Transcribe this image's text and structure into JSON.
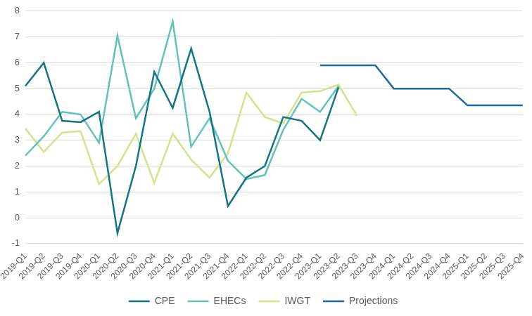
{
  "chart_data": {
    "type": "line",
    "categories": [
      "2019-Q1",
      "2019-Q2",
      "2019-Q3",
      "2019-Q4",
      "2020-Q1",
      "2020-Q2",
      "2020-Q3",
      "2020-Q4",
      "2021-Q1",
      "2021-Q2",
      "2021-Q3",
      "2021-Q4",
      "2022-Q1",
      "2022-Q2",
      "2022-Q3",
      "2022-Q4",
      "2023-Q1",
      "2023-Q2",
      "2023-Q3",
      "2023-Q4",
      "2024-Q1",
      "2024-Q2",
      "2024-Q3",
      "2024-Q4",
      "2025-Q1",
      "2025-Q2",
      "2025-Q3",
      "2025-Q4"
    ],
    "series": [
      {
        "name": "CPE",
        "color": "#137486",
        "values": [
          5.1,
          6.0,
          3.75,
          3.7,
          4.1,
          -0.6,
          2.0,
          5.65,
          4.25,
          6.55,
          4.1,
          0.45,
          1.55,
          2.0,
          3.9,
          3.75,
          3.0,
          5.05,
          null,
          null,
          null,
          null,
          null,
          null,
          null,
          null,
          null,
          null
        ]
      },
      {
        "name": "EHECs",
        "color": "#63c2ba",
        "values": [
          2.4,
          3.15,
          4.1,
          4.0,
          2.9,
          7.05,
          3.85,
          5.0,
          7.6,
          2.75,
          3.85,
          2.2,
          1.5,
          1.65,
          3.4,
          4.6,
          4.1,
          5.1,
          null,
          null,
          null,
          null,
          null,
          null,
          null,
          null,
          null,
          null
        ]
      },
      {
        "name": "IWGT",
        "color": "#d3e48a",
        "values": [
          3.45,
          2.55,
          3.3,
          3.35,
          1.3,
          2.0,
          3.25,
          1.35,
          3.25,
          2.25,
          1.55,
          2.5,
          4.85,
          3.9,
          3.65,
          4.85,
          4.9,
          5.15,
          3.95,
          null,
          null,
          null,
          null,
          null,
          null,
          null,
          null,
          null
        ]
      },
      {
        "name": "Projections",
        "color": "#1f6b9c",
        "values": [
          null,
          null,
          null,
          null,
          null,
          null,
          null,
          null,
          null,
          null,
          null,
          null,
          null,
          null,
          null,
          null,
          5.9,
          5.9,
          5.9,
          5.9,
          5.0,
          5.0,
          5.0,
          5.0,
          4.35,
          4.35,
          4.35,
          4.35
        ]
      }
    ],
    "ylim": [
      -1,
      8
    ],
    "yticks": [
      -1,
      0,
      1,
      2,
      3,
      4,
      5,
      6,
      7,
      8
    ],
    "grid": true,
    "legend": "bottom"
  }
}
